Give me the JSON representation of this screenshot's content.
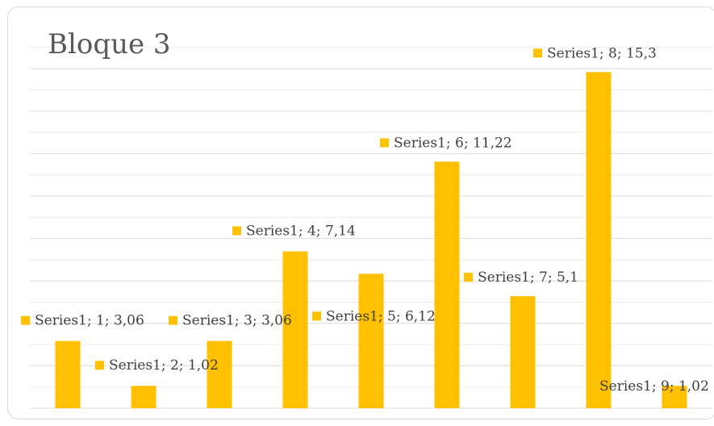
{
  "chart_data": {
    "type": "bar",
    "title": "Bloque 3",
    "series": [
      {
        "name": "Series1",
        "categories": [
          "1",
          "2",
          "3",
          "4",
          "5",
          "6",
          "7",
          "8",
          "9"
        ],
        "values": [
          3.06,
          1.02,
          3.06,
          7.14,
          6.12,
          11.22,
          5.1,
          15.3,
          1.02
        ],
        "labels": [
          "Series1; 1; 3,06",
          "Series1; 2; 1,02",
          "Series1; 3; 3,06",
          "Series1; 4; 7,14",
          "Series1; 5; 6,12",
          "Series1; 6; 11,22",
          "Series1; 7; 5,1",
          "Series1; 8; 15,3",
          "Series1; 9; 1,02"
        ]
      }
    ],
    "ylim": [
      0,
      17
    ],
    "grid": true,
    "colors": {
      "bar": "#ffc000",
      "grid": "#e6e6e6"
    }
  }
}
